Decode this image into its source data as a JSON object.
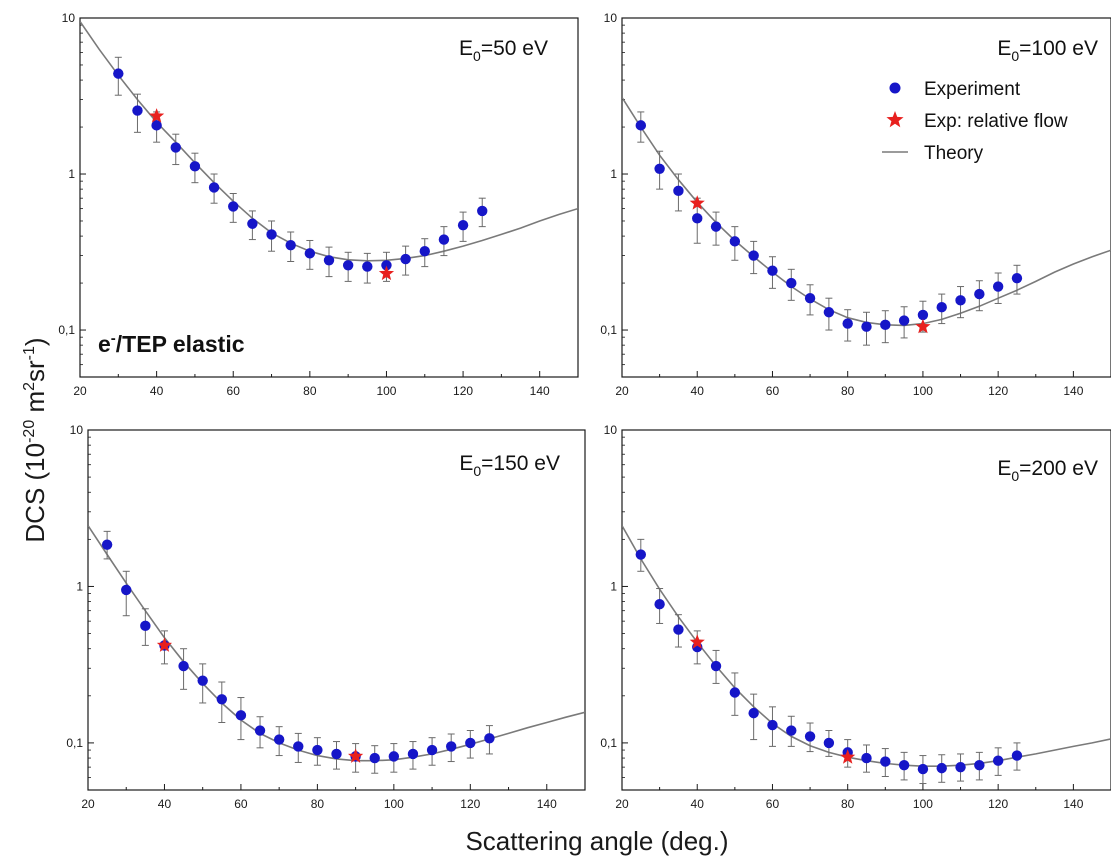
{
  "figure": {
    "ylabel_main": "DCS (10",
    "ylabel_exp1": "-20",
    "ylabel_mid": " m",
    "ylabel_exp2": "2",
    "ylabel_mid2": "sr",
    "ylabel_exp3": "-1",
    "ylabel_end": ")",
    "xlabel": "Scattering angle (deg.)",
    "panel_note_prefix": "e",
    "panel_note_sup": "-",
    "panel_note_suffix": "/TEP elastic"
  },
  "legend": {
    "items": [
      {
        "label": "Experiment",
        "marker": "circle",
        "color": "#1616c8"
      },
      {
        "label": "Exp: relative flow",
        "marker": "star",
        "color": "#e8201e"
      },
      {
        "label": "Theory",
        "marker": "line",
        "color": "#7a7a7a"
      }
    ]
  },
  "chart_data": [
    {
      "type": "scatter",
      "annotation_prefix": "E",
      "annotation_sub": "0",
      "annotation_suffix": "=50 eV",
      "xlim": [
        20,
        150
      ],
      "ylim": [
        0.05,
        10
      ],
      "y_scale": "log",
      "x_ticks": [
        "20",
        "40",
        "60",
        "80",
        "100",
        "120",
        "140"
      ],
      "y_ticks": [
        "0,1",
        "1",
        "10"
      ],
      "series": [
        {
          "kind": "experiment",
          "x": [
            30,
            35,
            40,
            45,
            50,
            55,
            60,
            65,
            70,
            75,
            80,
            85,
            90,
            95,
            100,
            105,
            110,
            115,
            120,
            125
          ],
          "y": [
            4.4,
            2.55,
            2.05,
            1.48,
            1.12,
            0.82,
            0.62,
            0.48,
            0.41,
            0.35,
            0.31,
            0.28,
            0.26,
            0.255,
            0.26,
            0.285,
            0.32,
            0.38,
            0.47,
            0.58
          ],
          "err_low": [
            3.2,
            1.85,
            1.6,
            1.15,
            0.88,
            0.65,
            0.49,
            0.38,
            0.32,
            0.275,
            0.245,
            0.22,
            0.205,
            0.2,
            0.205,
            0.225,
            0.255,
            0.3,
            0.37,
            0.46
          ],
          "err_high": [
            5.6,
            3.25,
            2.5,
            1.8,
            1.36,
            1.0,
            0.75,
            0.58,
            0.5,
            0.425,
            0.375,
            0.34,
            0.315,
            0.31,
            0.315,
            0.345,
            0.385,
            0.46,
            0.57,
            0.7
          ]
        },
        {
          "kind": "relative-flow",
          "x": [
            40,
            100
          ],
          "y": [
            2.35,
            0.23
          ]
        },
        {
          "kind": "theory",
          "x": [
            20,
            25,
            30,
            35,
            40,
            45,
            50,
            55,
            60,
            65,
            70,
            75,
            80,
            85,
            90,
            95,
            100,
            105,
            110,
            115,
            120,
            125,
            130,
            135,
            140,
            145,
            150
          ],
          "y": [
            9.5,
            6.3,
            4.3,
            3.0,
            2.15,
            1.6,
            1.18,
            0.88,
            0.67,
            0.52,
            0.42,
            0.36,
            0.32,
            0.295,
            0.282,
            0.278,
            0.28,
            0.288,
            0.3,
            0.32,
            0.345,
            0.375,
            0.41,
            0.45,
            0.5,
            0.55,
            0.6
          ]
        }
      ]
    },
    {
      "type": "scatter",
      "annotation_prefix": "E",
      "annotation_sub": "0",
      "annotation_suffix": "=100 eV",
      "xlim": [
        20,
        150
      ],
      "ylim": [
        0.05,
        10
      ],
      "y_scale": "log",
      "x_ticks": [
        "20",
        "40",
        "60",
        "80",
        "100",
        "120",
        "140"
      ],
      "y_ticks": [
        "0,1",
        "1",
        "10"
      ],
      "series": [
        {
          "kind": "experiment",
          "x": [
            25,
            30,
            35,
            40,
            45,
            50,
            55,
            60,
            65,
            70,
            75,
            80,
            85,
            90,
            95,
            100,
            105,
            110,
            115,
            120,
            125
          ],
          "y": [
            2.05,
            1.08,
            0.78,
            0.52,
            0.46,
            0.37,
            0.3,
            0.24,
            0.2,
            0.16,
            0.13,
            0.11,
            0.105,
            0.108,
            0.115,
            0.125,
            0.14,
            0.155,
            0.17,
            0.19,
            0.215
          ],
          "err_low": [
            1.6,
            0.8,
            0.58,
            0.36,
            0.35,
            0.28,
            0.23,
            0.185,
            0.155,
            0.125,
            0.1,
            0.085,
            0.08,
            0.083,
            0.089,
            0.097,
            0.11,
            0.12,
            0.133,
            0.148,
            0.17
          ],
          "err_high": [
            2.5,
            1.4,
            1.0,
            0.7,
            0.57,
            0.46,
            0.37,
            0.295,
            0.245,
            0.195,
            0.16,
            0.135,
            0.13,
            0.133,
            0.141,
            0.153,
            0.17,
            0.19,
            0.207,
            0.232,
            0.26
          ]
        },
        {
          "kind": "relative-flow",
          "x": [
            40,
            100
          ],
          "y": [
            0.65,
            0.105
          ]
        },
        {
          "kind": "theory",
          "x": [
            20,
            25,
            30,
            35,
            40,
            45,
            50,
            55,
            60,
            65,
            70,
            75,
            80,
            85,
            90,
            95,
            100,
            105,
            110,
            115,
            120,
            125,
            130,
            135,
            140,
            145,
            150
          ],
          "y": [
            3.1,
            2.0,
            1.32,
            0.92,
            0.66,
            0.49,
            0.375,
            0.295,
            0.235,
            0.19,
            0.158,
            0.135,
            0.12,
            0.112,
            0.108,
            0.107,
            0.11,
            0.117,
            0.128,
            0.142,
            0.16,
            0.18,
            0.205,
            0.235,
            0.265,
            0.295,
            0.325
          ]
        }
      ]
    },
    {
      "type": "scatter",
      "annotation_prefix": "E",
      "annotation_sub": "0",
      "annotation_suffix": "=150 eV",
      "xlim": [
        20,
        150
      ],
      "ylim": [
        0.05,
        10
      ],
      "y_scale": "log",
      "x_ticks": [
        "20",
        "40",
        "60",
        "80",
        "100",
        "120",
        "140"
      ],
      "y_ticks": [
        "0,1",
        "1",
        "10"
      ],
      "series": [
        {
          "kind": "experiment",
          "x": [
            25,
            30,
            35,
            40,
            45,
            50,
            55,
            60,
            65,
            70,
            75,
            80,
            85,
            90,
            95,
            100,
            105,
            110,
            115,
            120,
            125
          ],
          "y": [
            1.85,
            0.95,
            0.56,
            0.42,
            0.31,
            0.25,
            0.19,
            0.15,
            0.12,
            0.105,
            0.095,
            0.09,
            0.085,
            0.082,
            0.08,
            0.082,
            0.085,
            0.09,
            0.095,
            0.1,
            0.107
          ],
          "err_low": [
            1.5,
            0.65,
            0.42,
            0.32,
            0.22,
            0.18,
            0.135,
            0.105,
            0.093,
            0.083,
            0.075,
            0.072,
            0.068,
            0.065,
            0.064,
            0.065,
            0.068,
            0.072,
            0.076,
            0.08,
            0.085
          ],
          "err_high": [
            2.25,
            1.25,
            0.72,
            0.52,
            0.4,
            0.32,
            0.245,
            0.195,
            0.147,
            0.127,
            0.115,
            0.108,
            0.102,
            0.099,
            0.096,
            0.099,
            0.102,
            0.108,
            0.114,
            0.12,
            0.129
          ]
        },
        {
          "kind": "relative-flow",
          "x": [
            40,
            90
          ],
          "y": [
            0.42,
            0.082
          ]
        },
        {
          "kind": "theory",
          "x": [
            20,
            25,
            30,
            35,
            40,
            45,
            50,
            55,
            60,
            65,
            70,
            75,
            80,
            85,
            90,
            95,
            100,
            105,
            110,
            115,
            120,
            125,
            130,
            135,
            140,
            145,
            150
          ],
          "y": [
            2.45,
            1.6,
            1.05,
            0.7,
            0.47,
            0.33,
            0.24,
            0.18,
            0.14,
            0.115,
            0.1,
            0.09,
            0.083,
            0.079,
            0.077,
            0.077,
            0.078,
            0.081,
            0.085,
            0.091,
            0.098,
            0.106,
            0.115,
            0.125,
            0.135,
            0.146,
            0.157
          ]
        }
      ]
    },
    {
      "type": "scatter",
      "annotation_prefix": "E",
      "annotation_sub": "0",
      "annotation_suffix": "=200 eV",
      "xlim": [
        20,
        150
      ],
      "ylim": [
        0.05,
        10
      ],
      "y_scale": "log",
      "x_ticks": [
        "20",
        "40",
        "60",
        "80",
        "100",
        "120",
        "140"
      ],
      "y_ticks": [
        "0,1",
        "1",
        "10"
      ],
      "series": [
        {
          "kind": "experiment",
          "x": [
            25,
            30,
            35,
            40,
            45,
            50,
            55,
            60,
            65,
            70,
            75,
            80,
            85,
            90,
            95,
            100,
            105,
            110,
            115,
            120,
            125
          ],
          "y": [
            1.6,
            0.77,
            0.53,
            0.41,
            0.31,
            0.21,
            0.155,
            0.13,
            0.12,
            0.11,
            0.1,
            0.087,
            0.08,
            0.076,
            0.072,
            0.068,
            0.069,
            0.07,
            0.072,
            0.077,
            0.083
          ],
          "err_low": [
            1.25,
            0.58,
            0.41,
            0.32,
            0.24,
            0.15,
            0.105,
            0.095,
            0.095,
            0.088,
            0.082,
            0.07,
            0.065,
            0.061,
            0.058,
            0.055,
            0.056,
            0.057,
            0.058,
            0.062,
            0.067
          ],
          "err_high": [
            2.0,
            0.97,
            0.66,
            0.52,
            0.39,
            0.28,
            0.205,
            0.17,
            0.148,
            0.134,
            0.12,
            0.105,
            0.097,
            0.092,
            0.087,
            0.083,
            0.084,
            0.085,
            0.087,
            0.093,
            0.1
          ]
        },
        {
          "kind": "relative-flow",
          "x": [
            40,
            80
          ],
          "y": [
            0.44,
            0.081
          ]
        },
        {
          "kind": "theory",
          "x": [
            20,
            25,
            30,
            35,
            40,
            45,
            50,
            55,
            60,
            65,
            70,
            75,
            80,
            85,
            90,
            95,
            100,
            105,
            110,
            115,
            120,
            125,
            130,
            135,
            140,
            145,
            150
          ],
          "y": [
            2.45,
            1.5,
            0.96,
            0.64,
            0.44,
            0.31,
            0.225,
            0.17,
            0.133,
            0.11,
            0.096,
            0.087,
            0.081,
            0.077,
            0.074,
            0.072,
            0.071,
            0.071,
            0.072,
            0.074,
            0.077,
            0.081,
            0.085,
            0.09,
            0.095,
            0.1,
            0.106
          ]
        }
      ]
    }
  ]
}
